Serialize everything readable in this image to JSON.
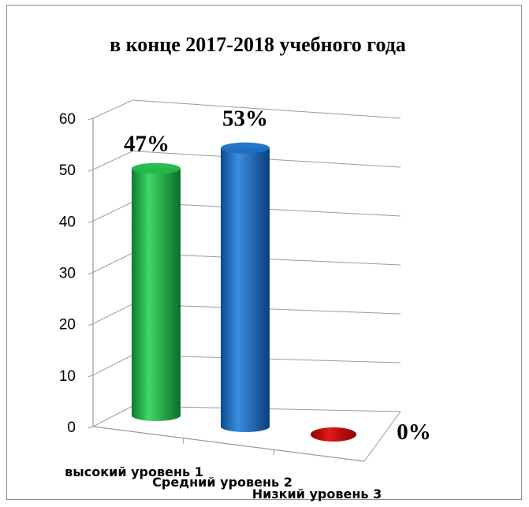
{
  "chart_data": {
    "type": "bar",
    "title": "в конце 2017-2018 учебного года",
    "categories": [
      "высокий уровень 1",
      "Средний уровень 2",
      "Низкий уровень 3"
    ],
    "values": [
      47,
      53,
      0
    ],
    "data_labels": [
      "47%",
      "53%",
      "0%"
    ],
    "colors": [
      "#1fb84a",
      "#1a6fc4",
      "#cc1010"
    ],
    "ylim": [
      0,
      60
    ],
    "yticks": [
      0,
      10,
      20,
      30,
      40,
      50,
      60
    ],
    "grid": true,
    "shape": "3d-cylinder",
    "legend": "none"
  }
}
